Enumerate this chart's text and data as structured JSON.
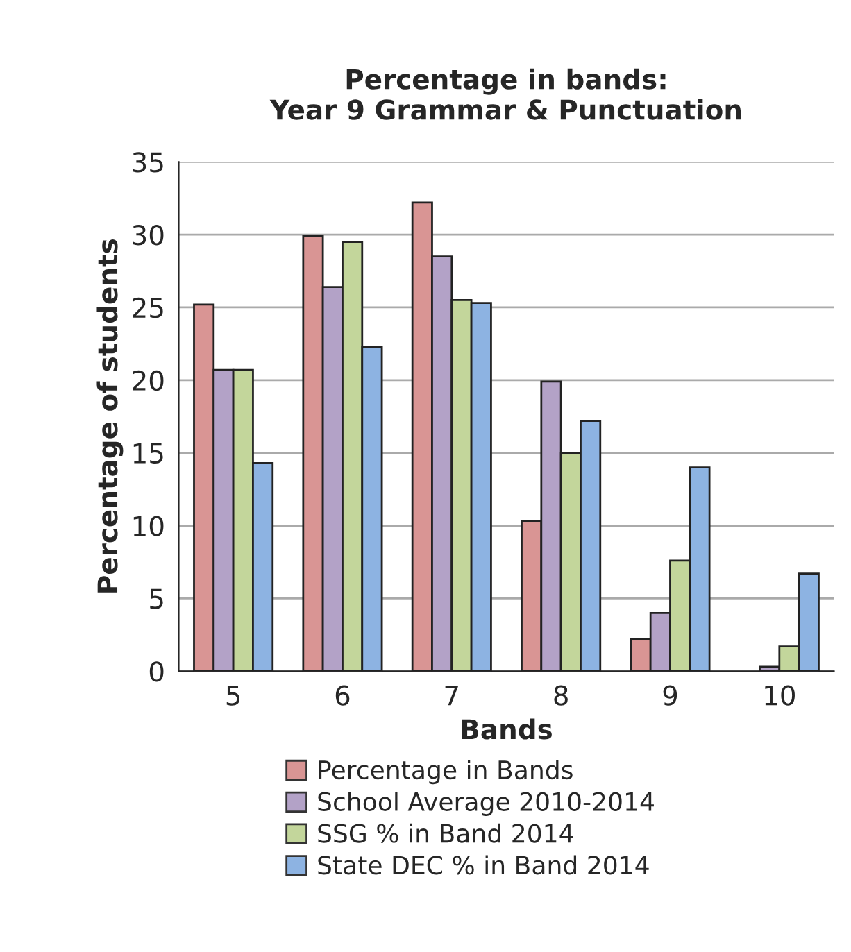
{
  "chart_data": {
    "type": "bar",
    "title": "Percentage in bands:\nYear 9 Grammar & Punctuation",
    "xlabel": "Bands",
    "ylabel": "Percentage of students",
    "categories": [
      "5",
      "6",
      "7",
      "8",
      "9",
      "10"
    ],
    "series": [
      {
        "name": "Percentage in Bands",
        "color": "#d99594",
        "values": [
          25.2,
          29.9,
          32.2,
          10.3,
          2.2,
          null
        ]
      },
      {
        "name": "School Average 2010-2014",
        "color": "#b3a2c7",
        "values": [
          20.7,
          26.4,
          28.5,
          19.9,
          4.0,
          0.3
        ]
      },
      {
        "name": "SSG % in Band 2014",
        "color": "#c3d69b",
        "values": [
          20.7,
          29.5,
          25.5,
          15.0,
          7.6,
          1.7
        ]
      },
      {
        "name": "State DEC % in Band 2014",
        "color": "#8db3e2",
        "values": [
          14.3,
          22.3,
          25.3,
          17.2,
          14.0,
          6.7
        ]
      }
    ],
    "ylim": [
      0,
      35
    ],
    "yticks": [
      0,
      5,
      10,
      15,
      20,
      25,
      30,
      35
    ],
    "grid": "y",
    "legend": "bottom"
  }
}
